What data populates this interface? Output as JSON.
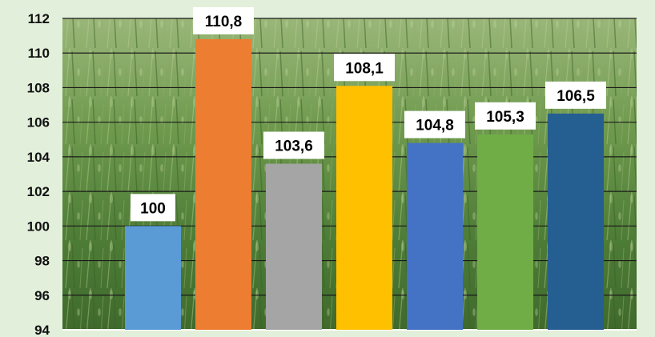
{
  "chart_data": {
    "type": "bar",
    "categories": [
      "",
      "",
      "",
      "",
      "",
      "",
      ""
    ],
    "values": [
      100,
      110.8,
      103.6,
      108.1,
      104.8,
      105.3,
      106.5
    ],
    "data_labels": [
      "100",
      "110,8",
      "103,6",
      "108,1",
      "104,8",
      "105,3",
      "106,5"
    ],
    "bar_colors": [
      "#5b9bd5",
      "#ed7d31",
      "#a5a5a5",
      "#ffc000",
      "#4472c4",
      "#70ad47",
      "#255e91"
    ],
    "ylim": [
      94,
      112
    ],
    "yticks": [
      94,
      96,
      98,
      100,
      102,
      104,
      106,
      108,
      110,
      112
    ],
    "ytick_labels": [
      "94",
      "96",
      "98",
      "100",
      "102",
      "104",
      "106",
      "108",
      "110",
      "112"
    ],
    "title": "",
    "xlabel": "",
    "ylabel": "",
    "grid": true,
    "legend": "none",
    "background": "photo of green wheat field",
    "label_box_color": "#ffffff",
    "grid_color": "#1a1a1a"
  }
}
